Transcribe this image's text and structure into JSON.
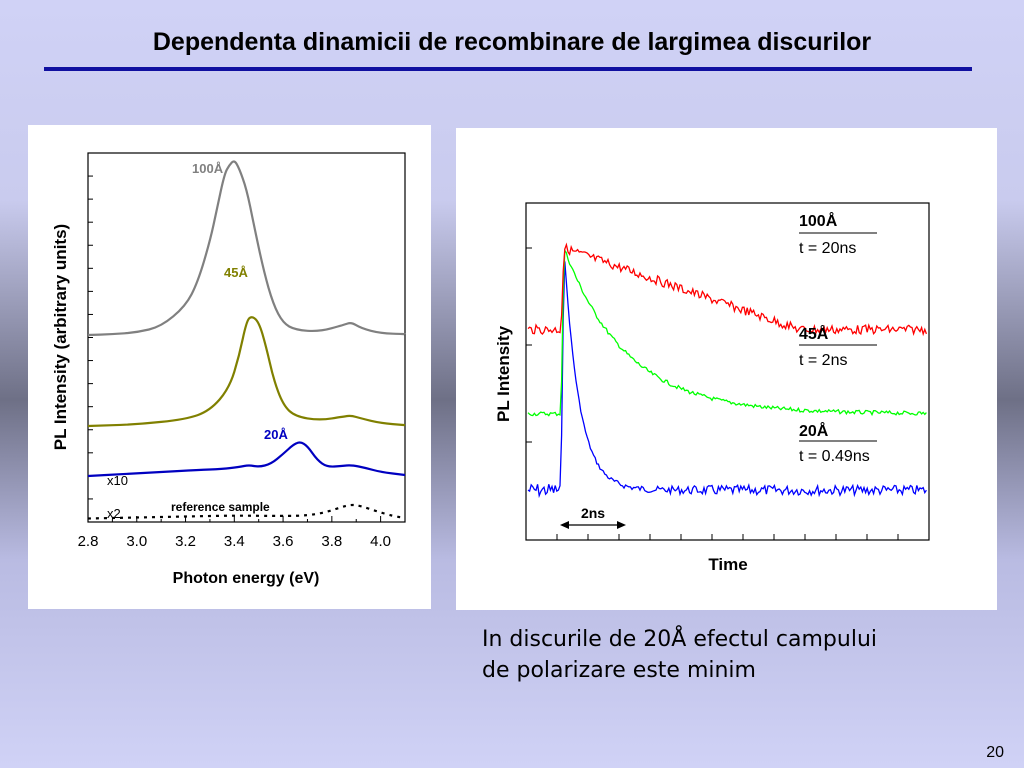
{
  "slide": {
    "title": "Dependenta dinamicii de recombinare de largimea discurilor",
    "caption_line1": "In discurile de 20Å efectul campului",
    "caption_line2": "de polarizare este minim",
    "page_number": "20"
  },
  "chart_data": [
    {
      "type": "line",
      "xlabel": "Photon energy (eV)",
      "ylabel": "PL Intensity (arbitrary units)",
      "xlim": [
        2.8,
        4.1
      ],
      "xticks": [
        "2.8",
        "3.0",
        "3.2",
        "3.4",
        "3.6",
        "3.8",
        "4.0"
      ],
      "annotations": [
        "x10",
        "x2",
        "reference sample"
      ],
      "series": [
        {
          "name": "100Å",
          "color": "#808080",
          "x": [
            2.8,
            2.9,
            3.0,
            3.1,
            3.2,
            3.25,
            3.3,
            3.33,
            3.36,
            3.38,
            3.4,
            3.42,
            3.45,
            3.48,
            3.52,
            3.56,
            3.6,
            3.65,
            3.75,
            3.85,
            3.88,
            3.92,
            4.0,
            4.1
          ],
          "y": [
            1.0,
            1.05,
            1.15,
            1.5,
            2.7,
            4.1,
            6.5,
            8.5,
            10.5,
            11.0,
            11.3,
            10.8,
            9.6,
            7.5,
            4.8,
            2.8,
            1.7,
            1.3,
            1.2,
            1.6,
            1.75,
            1.4,
            1.1,
            1.05
          ]
        },
        {
          "name": "45Å",
          "color": "#808000",
          "x": [
            2.8,
            3.0,
            3.2,
            3.3,
            3.38,
            3.42,
            3.45,
            3.47,
            3.5,
            3.53,
            3.56,
            3.6,
            3.65,
            3.75,
            3.85,
            3.88,
            3.92,
            4.0,
            4.1
          ],
          "y": [
            0.0,
            0.08,
            0.35,
            0.8,
            2.0,
            3.7,
            5.5,
            5.8,
            5.5,
            4.2,
            2.5,
            1.1,
            0.5,
            0.3,
            0.5,
            0.55,
            0.4,
            0.15,
            0.05
          ]
        },
        {
          "name": "20Å",
          "color": "#0000c0",
          "x": [
            2.8,
            2.95,
            3.1,
            3.25,
            3.35,
            3.42,
            3.46,
            3.5,
            3.55,
            3.6,
            3.64,
            3.67,
            3.7,
            3.74,
            3.78,
            3.84,
            3.88,
            3.94,
            4.0,
            4.1
          ],
          "y": [
            0.5,
            0.7,
            0.9,
            1.1,
            1.2,
            1.4,
            1.6,
            1.4,
            1.7,
            2.7,
            3.6,
            3.95,
            3.5,
            2.1,
            1.4,
            1.5,
            1.6,
            1.3,
            0.9,
            0.6
          ]
        },
        {
          "name": "reference sample",
          "color": "#000000",
          "dashed": true,
          "x": [
            2.8,
            3.0,
            3.2,
            3.4,
            3.6,
            3.7,
            3.78,
            3.84,
            3.88,
            3.92,
            3.98,
            4.05,
            4.1
          ],
          "y": [
            0.05,
            0.15,
            0.25,
            0.35,
            0.3,
            0.35,
            0.7,
            1.2,
            1.45,
            1.3,
            0.8,
            0.3,
            0.1
          ]
        }
      ]
    },
    {
      "type": "line",
      "xlabel": "Time",
      "ylabel": "PL Intensity",
      "scale_bar": "2ns",
      "series": [
        {
          "name": "100Å",
          "label": "t = 20ns",
          "color": "#ff0000",
          "baseline": 0.68,
          "peak": 1.0,
          "tau_ns": 20
        },
        {
          "name": "45Å",
          "label": "t = 2ns",
          "color": "#00ff00",
          "baseline": 0.35,
          "peak": 1.0,
          "tau_ns": 2
        },
        {
          "name": "20Å",
          "label": "t = 0.49ns",
          "color": "#0000ff",
          "baseline": 0.05,
          "peak": 1.0,
          "tau_ns": 0.49
        }
      ]
    }
  ]
}
